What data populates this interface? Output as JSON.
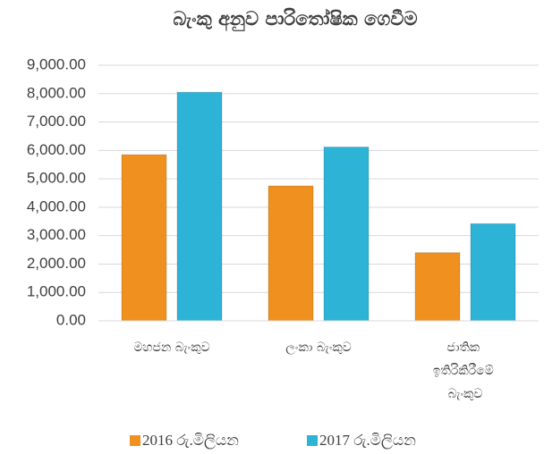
{
  "chart_data": {
    "type": "bar",
    "title": "බැංකු අනුව පාරිතෝෂික ගෙවීම",
    "categories": [
      "මහජන බැංකුව",
      "ලංකා බැංකුව",
      "ජාතික ඉතිරිකිරීමේ බැංකුව"
    ],
    "series": [
      {
        "name": "2016 රු.මිලියන",
        "color": "#f0901e",
        "values": [
          5850,
          4750,
          2400
        ]
      },
      {
        "name": "2017 රු.මිලියන",
        "color": "#2db3d6",
        "values": [
          8050,
          6120,
          3420
        ]
      }
    ],
    "ylim": [
      0,
      9000
    ],
    "yticks": [
      {
        "value": 0,
        "label": "0.00"
      },
      {
        "value": 1000,
        "label": "1,000.00"
      },
      {
        "value": 2000,
        "label": "2,000.00"
      },
      {
        "value": 3000,
        "label": "3,000.00"
      },
      {
        "value": 4000,
        "label": "4,000.00"
      },
      {
        "value": 5000,
        "label": "5,000.00"
      },
      {
        "value": 6000,
        "label": "6,000.00"
      },
      {
        "value": 7000,
        "label": "7,000.00"
      },
      {
        "value": 8000,
        "label": "8,000.00"
      },
      {
        "value": 9000,
        "label": "9,000.00"
      }
    ],
    "grid": true,
    "legend": "bottom"
  }
}
